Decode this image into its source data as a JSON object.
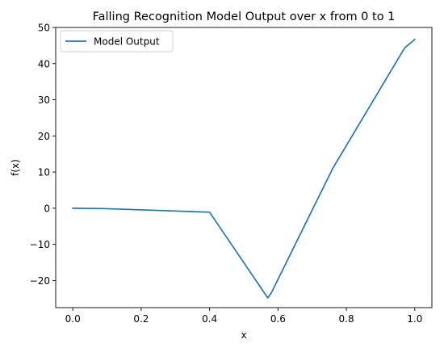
{
  "chart_data": {
    "type": "line",
    "title": "Falling Recognition Model Output over x from 0 to 1",
    "xlabel": "x",
    "ylabel": "f(x)",
    "xlim": [
      -0.05,
      1.05
    ],
    "ylim": [
      -27.5,
      50
    ],
    "xticks": [
      0.0,
      0.2,
      0.4,
      0.6,
      0.8,
      1.0
    ],
    "xtick_labels": [
      "0.0",
      "0.2",
      "0.4",
      "0.6",
      "0.8",
      "1.0"
    ],
    "yticks": [
      -20,
      -10,
      0,
      10,
      20,
      30,
      40,
      50
    ],
    "ytick_labels": [
      "−20",
      "−10",
      "0",
      "10",
      "20",
      "30",
      "40",
      "50"
    ],
    "grid": false,
    "legend_position": "top-left",
    "series": [
      {
        "name": "Model Output",
        "color": "#1f77b4",
        "x": [
          0.0,
          0.09,
          0.4,
          0.57,
          0.58,
          0.76,
          0.97,
          1.0
        ],
        "y": [
          0.0,
          -0.1,
          -1.1,
          -24.8,
          -23.5,
          11.0,
          44.3,
          46.7
        ]
      }
    ]
  }
}
